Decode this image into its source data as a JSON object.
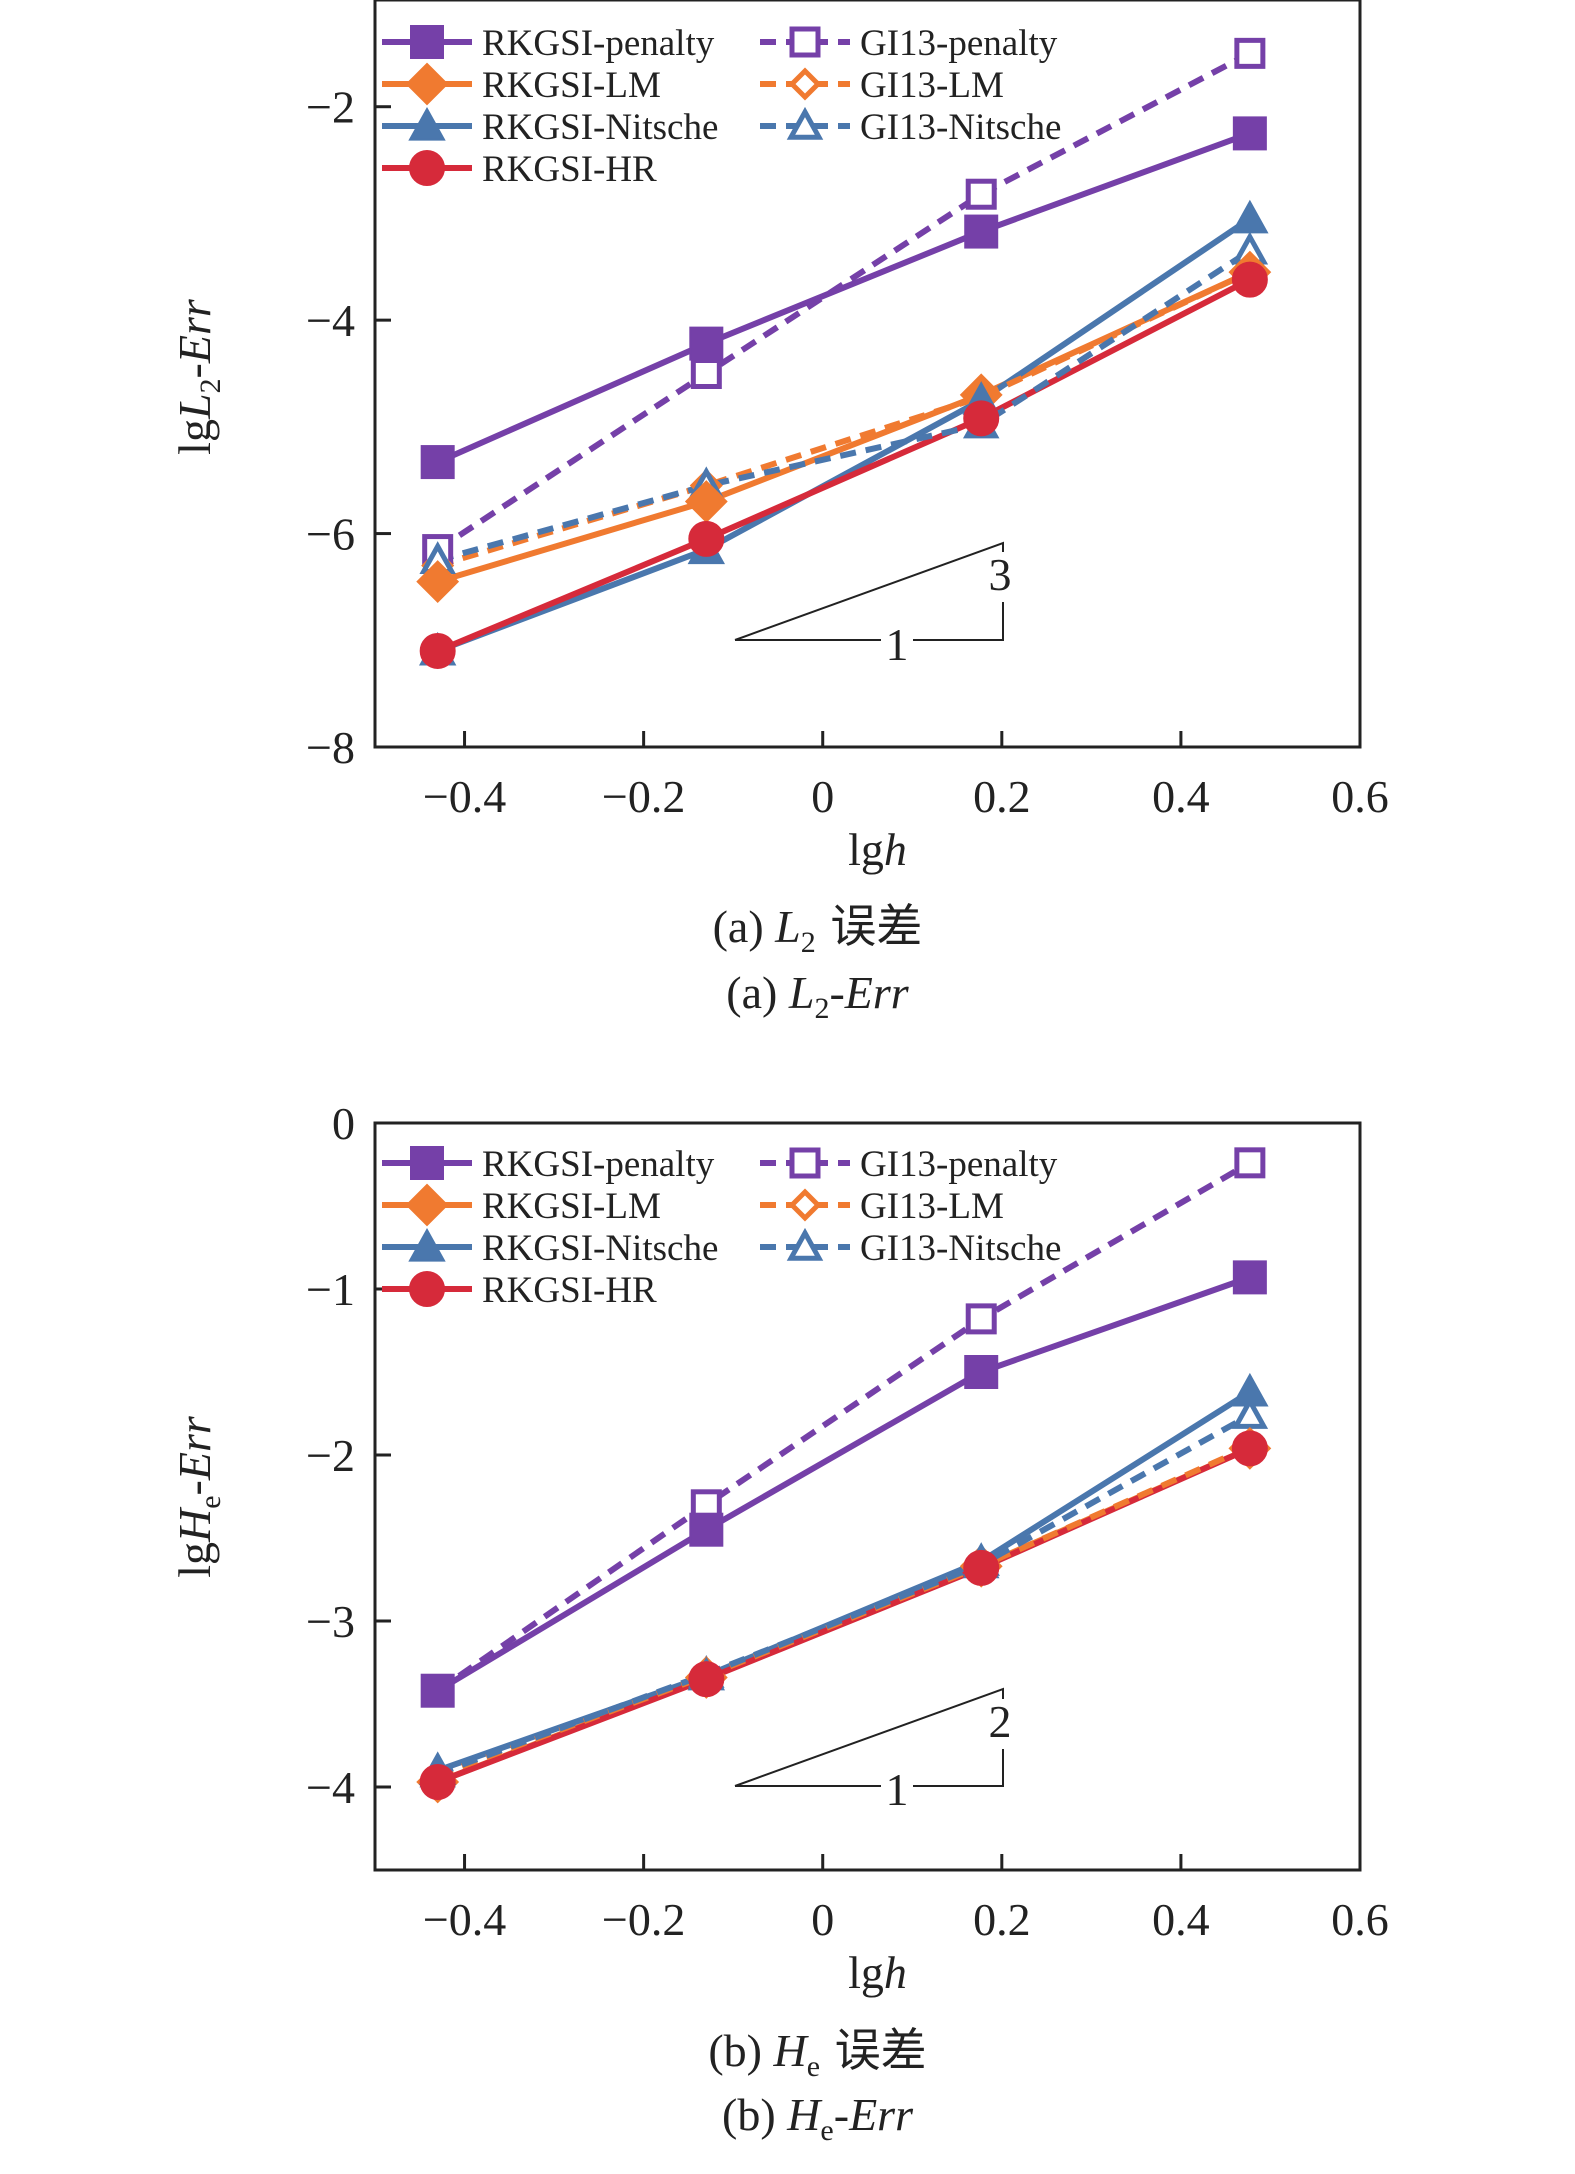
{
  "chart_data": [
    {
      "type": "line",
      "xlabel": "lgh",
      "ylabel": "lgL2-Err",
      "xlim": [
        -0.5,
        0.6
      ],
      "ylim": [
        -8,
        -1
      ],
      "xticks": [
        -0.4,
        -0.2,
        0,
        0.2,
        0.4,
        0.6
      ],
      "yticks": [
        -8,
        -6,
        -4,
        -2
      ],
      "x": [
        -0.43,
        -0.13,
        0.177,
        0.477
      ],
      "caption_cn": "(a) L2 误差",
      "caption_en": "(a) L2-Err",
      "slope": {
        "run": "1",
        "rise": "3"
      },
      "legend_position": "top-left",
      "series": [
        {
          "name": "RKGSI-penalty",
          "color": "#7540a8",
          "dashed": false,
          "marker": "square-filled",
          "values": [
            -5.33,
            -4.22,
            -3.17,
            -2.25
          ]
        },
        {
          "name": "RKGSI-LM",
          "color": "#f07a30",
          "dashed": false,
          "marker": "diamond-filled",
          "values": [
            -6.45,
            -5.7,
            -4.7,
            -3.55
          ]
        },
        {
          "name": "RKGSI-Nitsche",
          "color": "#4a77ad",
          "dashed": false,
          "marker": "triangle-filled",
          "values": [
            -7.1,
            -6.15,
            -4.75,
            -3.05
          ]
        },
        {
          "name": "RKGSI-HR",
          "color": "#d62a3a",
          "dashed": false,
          "marker": "circle-filled",
          "values": [
            -7.1,
            -6.05,
            -4.92,
            -3.62
          ]
        },
        {
          "name": "GI13-penalty",
          "color": "#7540a8",
          "dashed": true,
          "marker": "square-open",
          "values": [
            -6.15,
            -4.5,
            -2.82,
            -1.5
          ]
        },
        {
          "name": "GI13-LM",
          "color": "#f07a30",
          "dashed": true,
          "marker": "diamond-open",
          "values": [
            -6.3,
            -5.55,
            -4.72,
            -3.55
          ]
        },
        {
          "name": "GI13-Nitsche",
          "color": "#4a77ad",
          "dashed": true,
          "marker": "triangle-open",
          "values": [
            -6.25,
            -5.55,
            -4.98,
            -3.35
          ]
        }
      ]
    },
    {
      "type": "line",
      "xlabel": "lgh",
      "ylabel": "lgHe-Err",
      "xlim": [
        -0.5,
        0.6
      ],
      "ylim": [
        -4.5,
        0
      ],
      "xticks": [
        -0.4,
        -0.2,
        0,
        0.2,
        0.4,
        0.6
      ],
      "yticks": [
        -4,
        -3,
        -2,
        -1,
        0
      ],
      "x": [
        -0.43,
        -0.13,
        0.177,
        0.477
      ],
      "caption_cn": "(b) He 误差",
      "caption_en": "(b) He-Err",
      "slope": {
        "run": "1",
        "rise": "2"
      },
      "legend_position": "top-left",
      "series": [
        {
          "name": "RKGSI-penalty",
          "color": "#7540a8",
          "dashed": false,
          "marker": "square-filled",
          "values": [
            -3.42,
            -2.45,
            -1.5,
            -0.93
          ]
        },
        {
          "name": "RKGSI-LM",
          "color": "#f07a30",
          "dashed": false,
          "marker": "diamond-filled",
          "values": [
            -3.97,
            -3.34,
            -2.67,
            -1.96
          ]
        },
        {
          "name": "RKGSI-Nitsche",
          "color": "#4a77ad",
          "dashed": false,
          "marker": "triangle-filled",
          "values": [
            -3.9,
            -3.33,
            -2.64,
            -1.62
          ]
        },
        {
          "name": "RKGSI-HR",
          "color": "#d62a3a",
          "dashed": false,
          "marker": "circle-filled",
          "values": [
            -3.97,
            -3.35,
            -2.68,
            -1.96
          ]
        },
        {
          "name": "GI13-penalty",
          "color": "#7540a8",
          "dashed": true,
          "marker": "square-open",
          "values": [
            -3.42,
            -2.3,
            -1.18,
            -0.24
          ]
        },
        {
          "name": "GI13-LM",
          "color": "#f07a30",
          "dashed": true,
          "marker": "diamond-open",
          "values": [
            -3.93,
            -3.33,
            -2.67,
            -1.95
          ]
        },
        {
          "name": "GI13-Nitsche",
          "color": "#4a77ad",
          "dashed": true,
          "marker": "triangle-open",
          "values": [
            -3.92,
            -3.32,
            -2.66,
            -1.76
          ]
        }
      ]
    }
  ]
}
